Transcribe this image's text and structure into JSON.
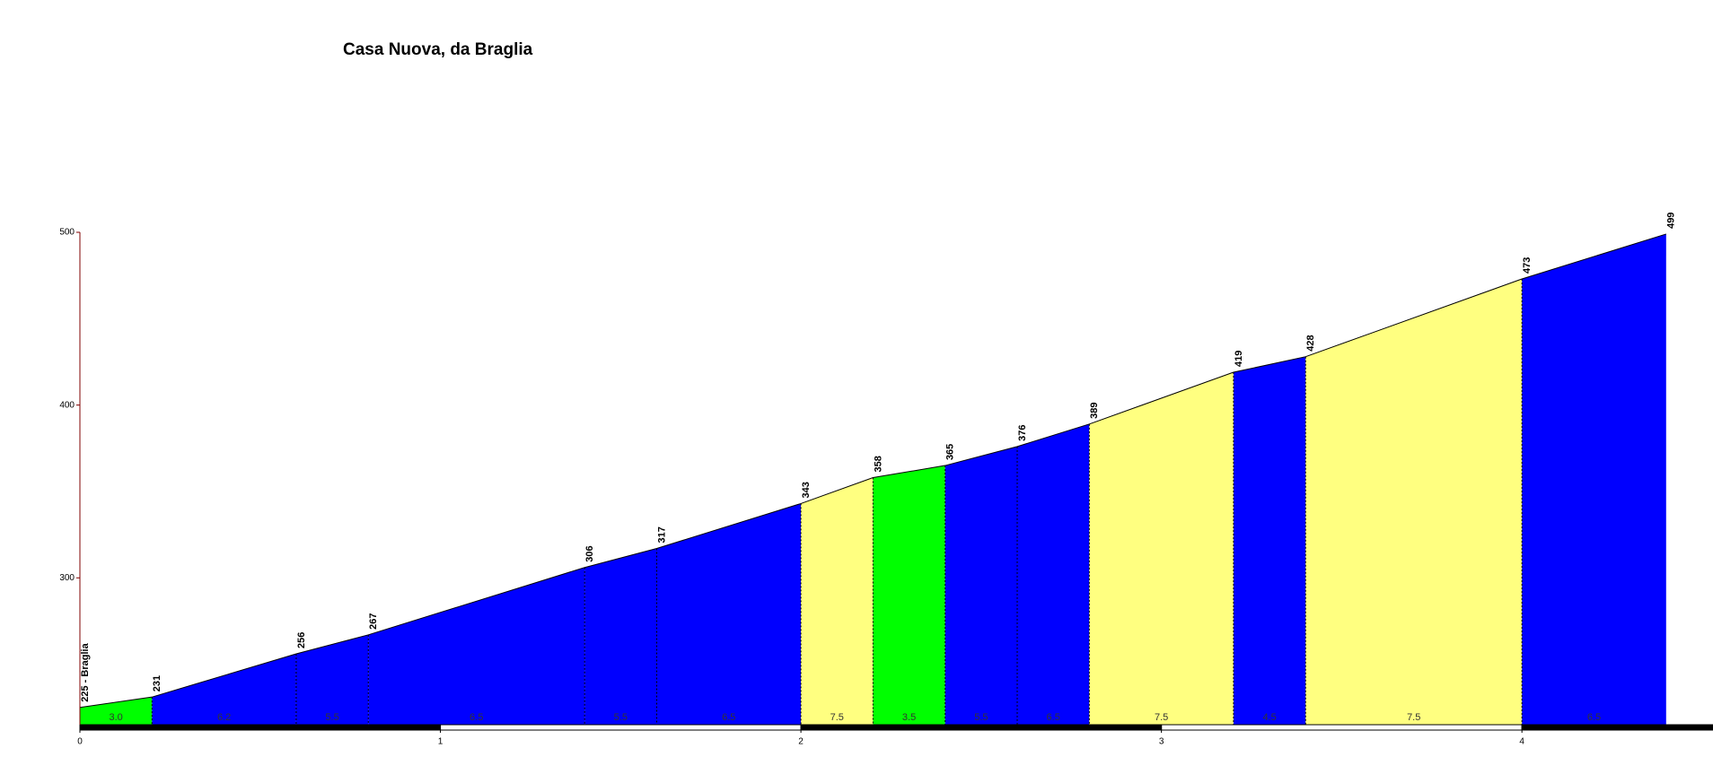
{
  "chart_data": {
    "type": "area",
    "title": "Casa Nuova, da Braglia",
    "x": [
      0,
      0.2,
      0.6,
      0.8,
      1.4,
      1.6,
      2.0,
      2.2,
      2.4,
      2.6,
      2.8,
      3.2,
      3.4,
      4.0,
      4.4
    ],
    "values": [
      225,
      231,
      256,
      267,
      306,
      317,
      343,
      358,
      365,
      376,
      389,
      419,
      428,
      473,
      499
    ],
    "value_labels": [
      "225 - Braglia",
      "231",
      "256",
      "267",
      "306",
      "317",
      "343",
      "358",
      "365",
      "376",
      "389",
      "419",
      "428",
      "473",
      "499"
    ],
    "segment_colors": [
      "#00ff00",
      "#0000ff",
      "#0000ff",
      "#0000ff",
      "#0000ff",
      "#0000ff",
      "#ffff80",
      "#00ff00",
      "#0000ff",
      "#0000ff",
      "#ffff80",
      "#0000ff",
      "#ffff80",
      "#0000ff"
    ],
    "grade_labels": [
      "3.0",
      "6.2",
      "5.5",
      "6.5",
      "5.5",
      "6.5",
      "7.5",
      "3.5",
      "5.5",
      "6.5",
      "7.5",
      "4.5",
      "7.5",
      "6.5"
    ],
    "xlim": [
      0,
      4.53
    ],
    "ylim": [
      215,
      500
    ],
    "xticks": [
      0,
      1,
      2,
      3,
      4
    ],
    "yticks": [
      300,
      400,
      500
    ]
  }
}
